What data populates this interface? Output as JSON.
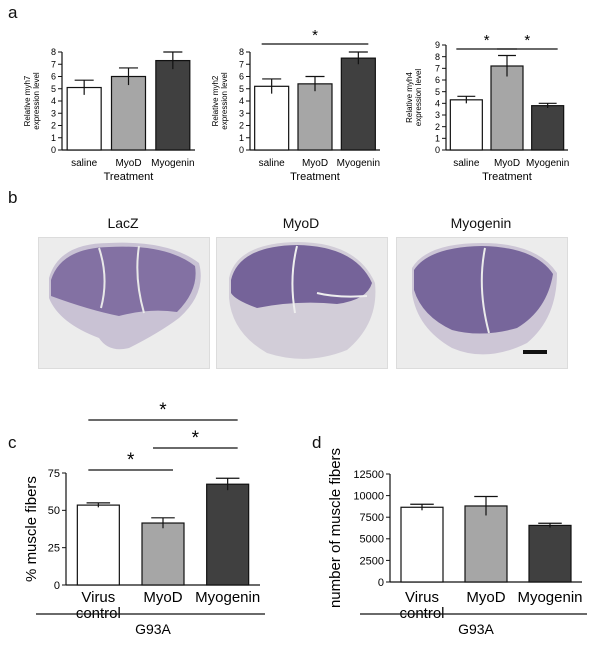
{
  "panels": {
    "a": "a",
    "b": "b",
    "c": "c",
    "d": "d"
  },
  "micrographs": [
    {
      "title": "LacZ",
      "color": "#5a4485"
    },
    {
      "title": "MyoD",
      "color": "#5a4485"
    },
    {
      "title": "Myogenin",
      "color": "#5a4485"
    }
  ],
  "colors": {
    "saline": "#ffffff",
    "myod": "#a6a6a6",
    "myogenin": "#404040"
  },
  "chart_data": [
    {
      "type": "bar",
      "categories": [
        "saline",
        "MyoD",
        "Myogenin"
      ],
      "values": [
        5.1,
        6.0,
        7.3
      ],
      "errors": [
        0.6,
        0.7,
        0.7
      ],
      "xlabel": "Treatment",
      "ylabel": "Relative myh7\nexpression level",
      "ylim": [
        0,
        8
      ],
      "yticks": [
        0,
        1,
        2,
        3,
        4,
        5,
        6,
        7,
        8
      ],
      "significance": []
    },
    {
      "type": "bar",
      "categories": [
        "saline",
        "MyoD",
        "Myogenin"
      ],
      "values": [
        5.2,
        5.4,
        7.5
      ],
      "errors": [
        0.6,
        0.6,
        0.5
      ],
      "xlabel": "Treatment",
      "ylabel": "Relative myh2\nexpression level",
      "ylim": [
        0,
        8
      ],
      "yticks": [
        0,
        1,
        2,
        3,
        4,
        5,
        6,
        7,
        8
      ],
      "significance": [
        {
          "from": 0,
          "to": 2,
          "label": "*"
        }
      ]
    },
    {
      "type": "bar",
      "categories": [
        "saline",
        "MyoD",
        "Myogenin"
      ],
      "values": [
        4.3,
        7.2,
        3.8
      ],
      "errors": [
        0.3,
        0.9,
        0.2
      ],
      "xlabel": "Treatment",
      "ylabel": "Relative myh4\nexpression level",
      "ylim": [
        0,
        9
      ],
      "yticks": [
        0,
        1,
        2,
        3,
        4,
        5,
        6,
        7,
        8,
        9
      ],
      "significance": [
        {
          "from": 0,
          "to": 1,
          "label": "*"
        },
        {
          "from": 1,
          "to": 2,
          "label": "*"
        }
      ]
    },
    {
      "type": "bar",
      "categories": [
        "Virus\ncontrol",
        "MyoD",
        "Myogenin"
      ],
      "values": [
        53.5,
        41.5,
        67.5
      ],
      "errors": [
        1.5,
        3.5,
        4.0
      ],
      "xlabel": "",
      "ylabel": "% muscle fibers",
      "ylim": [
        0,
        75
      ],
      "yticks": [
        0,
        25,
        50,
        75
      ],
      "group_label": "G93A",
      "significance": [
        {
          "from": 0,
          "to": 2,
          "label": "*"
        },
        {
          "from": 0,
          "to": 1,
          "label": "*"
        },
        {
          "from": 1,
          "to": 2,
          "label": "*"
        }
      ]
    },
    {
      "type": "bar",
      "categories": [
        "Virus\ncontrol",
        "MyoD",
        "Myogenin"
      ],
      "values": [
        8650,
        8800,
        6550
      ],
      "errors": [
        350,
        1100,
        250
      ],
      "xlabel": "",
      "ylabel": "number of muscle fibers",
      "ylim": [
        0,
        12500
      ],
      "yticks": [
        0,
        2500,
        5000,
        7500,
        10000,
        12500
      ],
      "group_label": "G93A",
      "significance": []
    }
  ]
}
